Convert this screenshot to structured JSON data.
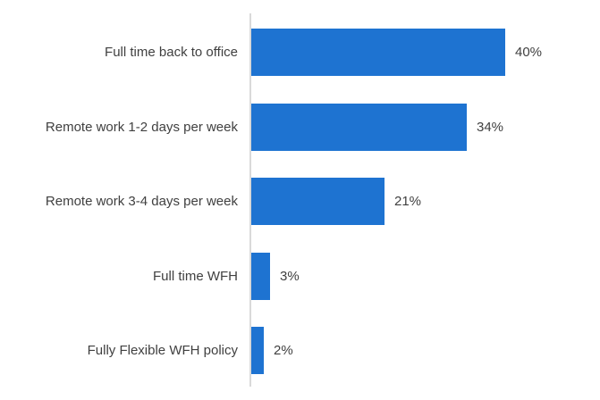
{
  "chart_data": {
    "type": "bar",
    "orientation": "horizontal",
    "title": "",
    "xlabel": "",
    "ylabel": "",
    "categories": [
      "Full time back to office",
      "Remote work 1-2 days per week",
      "Remote work 3-4 days per week",
      "Full time WFH",
      "Fully Flexible WFH policy"
    ],
    "values": [
      40,
      34,
      21,
      3,
      2
    ],
    "value_labels": [
      "40%",
      "34%",
      "21%",
      "3%",
      "2%"
    ],
    "xlim": [
      0,
      55
    ],
    "grid": false,
    "legend": false,
    "bar_color": "#1e73d1",
    "label_color": "#404040",
    "axis_line_color": "#d9d9d9",
    "background_color": "#ffffff"
  }
}
